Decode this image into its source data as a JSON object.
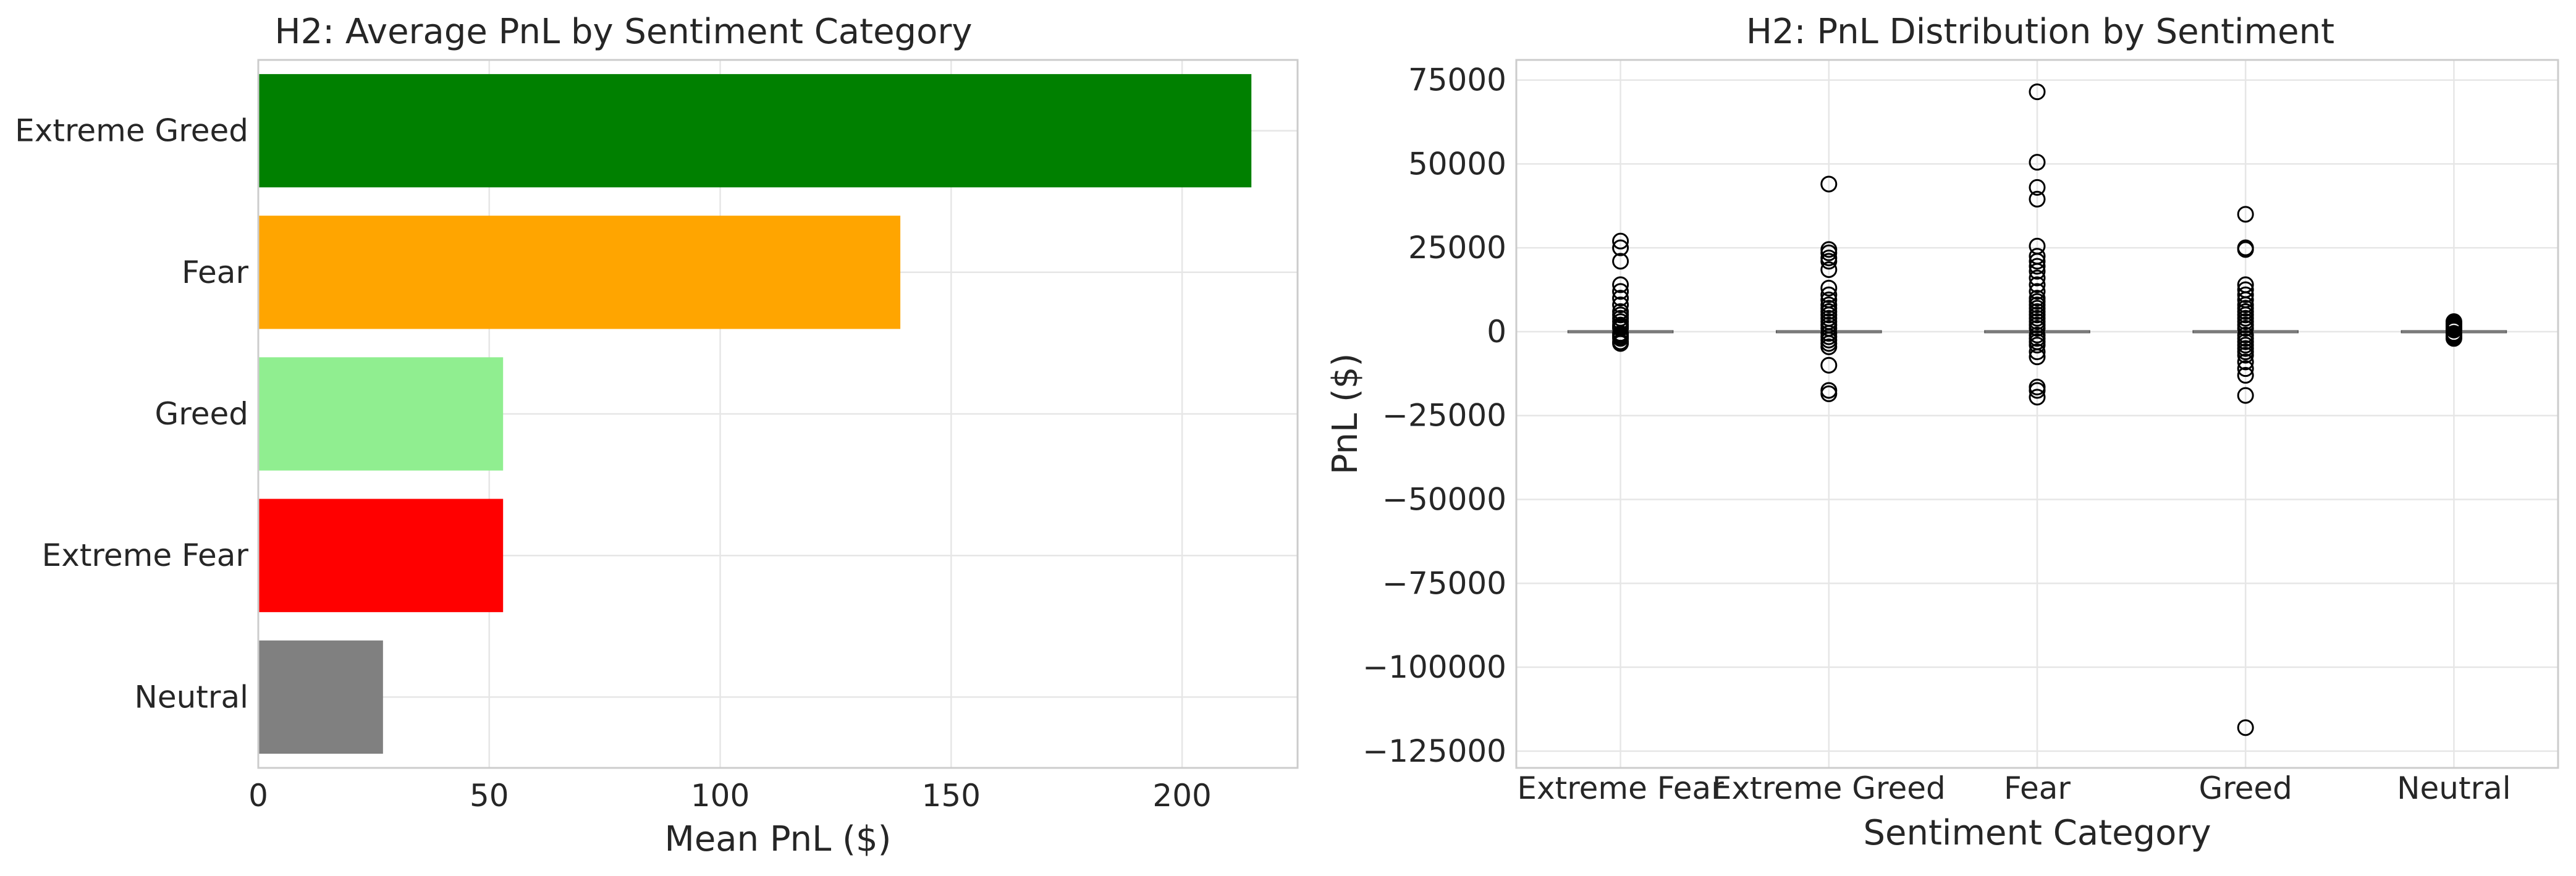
{
  "chart_data": [
    {
      "type": "bar",
      "orientation": "horizontal",
      "title": "H2: Average PnL by Sentiment Category",
      "xlabel": "Mean PnL ($)",
      "ylabel": "",
      "categories": [
        "Extreme Greed",
        "Fear",
        "Greed",
        "Extreme Fear",
        "Neutral"
      ],
      "values": [
        215,
        139,
        53,
        53,
        27
      ],
      "colors": [
        "#008000",
        "#ffa500",
        "#90ee90",
        "#ff0000",
        "#808080"
      ],
      "xlim": [
        0,
        225
      ],
      "xticks": [
        0,
        50,
        100,
        150,
        200
      ],
      "grid": true
    },
    {
      "type": "box",
      "title": "H2: PnL Distribution by Sentiment",
      "xlabel": "Sentiment Category",
      "ylabel": "PnL ($)",
      "categories": [
        "Extreme Fear",
        "Extreme Greed",
        "Fear",
        "Greed",
        "Neutral"
      ],
      "ylim": [
        -130000,
        81000
      ],
      "yticks": [
        75000,
        50000,
        25000,
        0,
        -25000,
        -50000,
        -75000,
        -100000,
        -125000
      ],
      "ytick_labels": [
        "75000",
        "50000",
        "25000",
        "0",
        "−25000",
        "−50000",
        "−75000",
        "−100000",
        "−125000"
      ],
      "grid": true,
      "series": [
        {
          "category": "Extreme Fear",
          "median": 0,
          "q1": 0,
          "q3": 0,
          "outliers": [
            27000,
            25000,
            21000,
            14000,
            12000,
            10000,
            8000,
            6000,
            5000,
            4000,
            3000,
            2000,
            1500,
            1000,
            -500,
            -1000,
            -1500,
            -2000,
            -3000,
            -3500
          ]
        },
        {
          "category": "Extreme Greed",
          "median": 0,
          "q1": 0,
          "q3": 0,
          "outliers": [
            44000,
            24500,
            23500,
            22000,
            21000,
            18500,
            13000,
            11000,
            9500,
            8000,
            7000,
            6000,
            5000,
            4000,
            3000,
            2000,
            1000,
            -500,
            -1500,
            -2500,
            -3500,
            -4500,
            -10000,
            -17500,
            -18500
          ]
        },
        {
          "category": "Fear",
          "median": 0,
          "q1": 0,
          "q3": 0,
          "outliers": [
            71500,
            50500,
            43000,
            39500,
            25500,
            22500,
            21000,
            19500,
            18000,
            16000,
            14000,
            12000,
            10000,
            9000,
            8000,
            7000,
            6000,
            5000,
            4000,
            3000,
            2000,
            1000,
            -1000,
            -2000,
            -3000,
            -4000,
            -6000,
            -7500,
            -16500,
            -17500,
            -19500
          ]
        },
        {
          "category": "Greed",
          "median": 0,
          "q1": 0,
          "q3": 0,
          "outliers": [
            35000,
            25000,
            24500,
            14000,
            12500,
            11000,
            9500,
            8000,
            7000,
            6000,
            5000,
            4000,
            3000,
            2000,
            1000,
            -1000,
            -2000,
            -3000,
            -4000,
            -5000,
            -6000,
            -7000,
            -9000,
            -11000,
            -13000,
            -19000,
            -118000
          ]
        },
        {
          "category": "Neutral",
          "median": 0,
          "q1": 0,
          "q3": 0,
          "outliers": [
            3000,
            2500,
            2000,
            1500,
            1000,
            500,
            -500,
            -1000,
            -1500,
            -2000
          ]
        }
      ]
    }
  ]
}
